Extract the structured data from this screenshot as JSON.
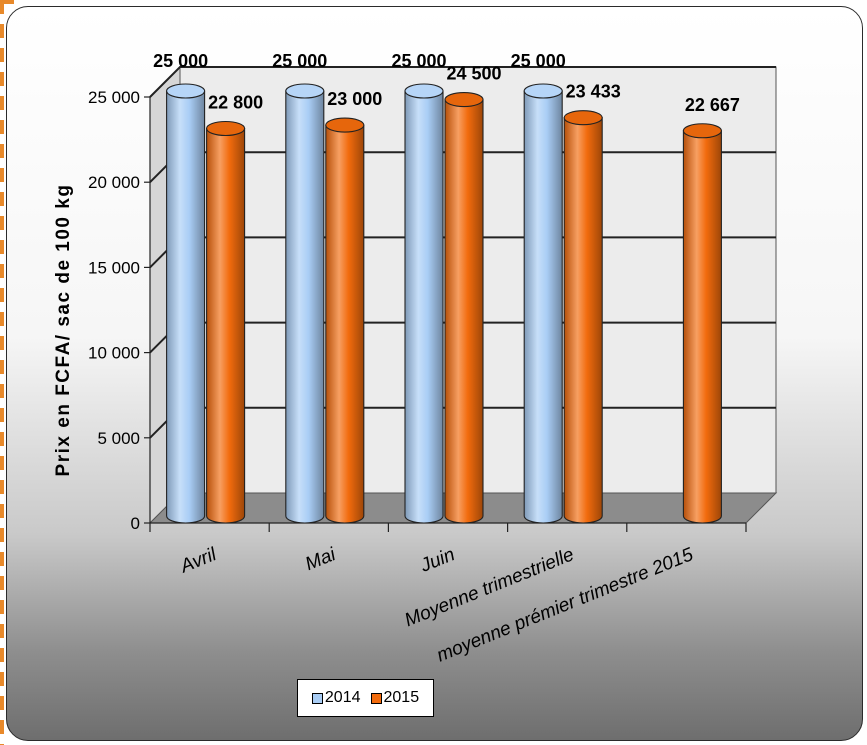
{
  "chart_data": {
    "type": "bar",
    "title": "",
    "xlabel": "",
    "ylabel": "Prix en FCFA/ sac de 100 kg",
    "ylim": [
      0,
      25000
    ],
    "yticks": [
      "0",
      "5 000",
      "10 000",
      "15 000",
      "20 000",
      "25 000"
    ],
    "categories": [
      "Avril",
      "Mai",
      "Juin",
      "Moyenne trimestrielle",
      "moyenne prémier trimestre 2015"
    ],
    "series": [
      {
        "name": "2014",
        "color": "#a9cdf5",
        "values": [
          25000,
          25000,
          25000,
          25000,
          null
        ],
        "labels": [
          "25 000",
          "25 000",
          "25 000",
          "25 000",
          ""
        ]
      },
      {
        "name": "2015",
        "color": "#f26b0d",
        "values": [
          22800,
          23000,
          24500,
          23433,
          22667
        ],
        "labels": [
          "22 800",
          "23 000",
          "24 500",
          "23 433",
          "22 667"
        ]
      }
    ],
    "grid": true,
    "legend_position": "bottom"
  }
}
